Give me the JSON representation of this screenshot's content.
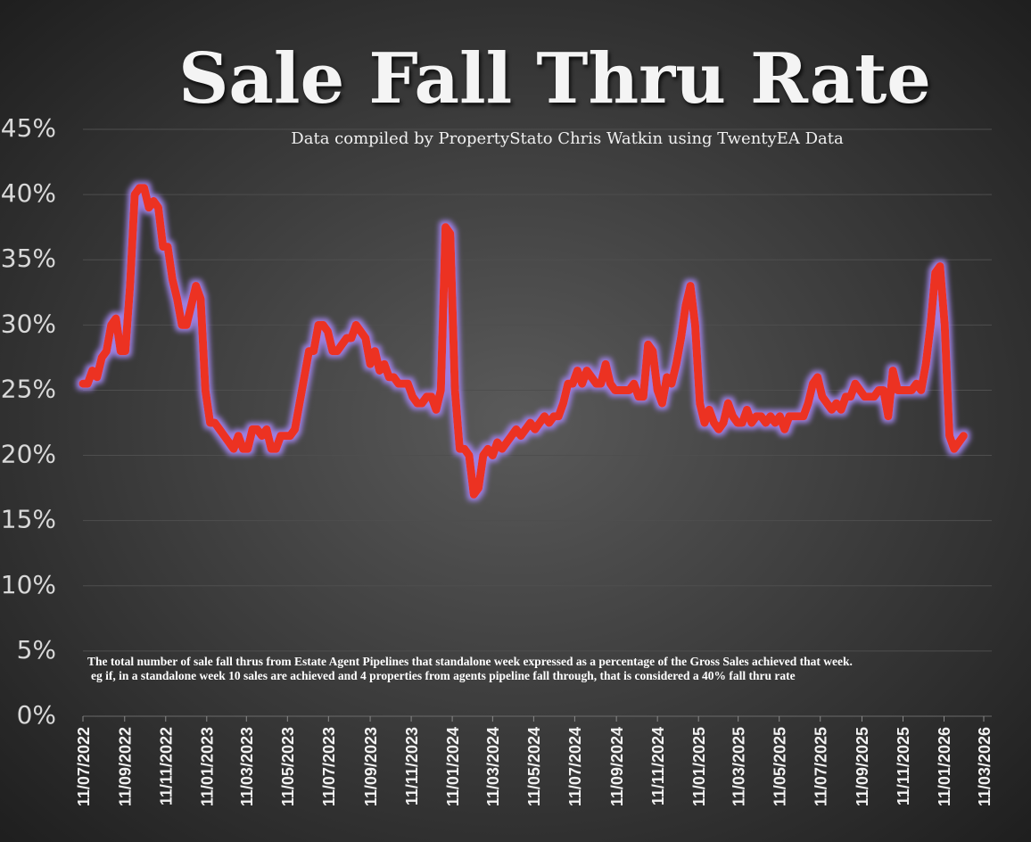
{
  "chart_data": {
    "type": "line",
    "title": "Sale Fall Thru Rate",
    "subtitle": "Data compiled by PropertyStato Chris Watkin using TwentyEA Data",
    "notes": [
      "The total number of sale fall thrus from Estate Agent Pipelines that standalone week expressed as a percentage of the Gross Sales achieved that week.",
      "eg if, in a standalone week 10 sales are achieved and 4 properties from agents pipeline fall through, that is considered a 40%  fall thru rate"
    ],
    "grid": true,
    "xlim": [
      "2022-07-11",
      "2026-03-11"
    ],
    "xticks": [
      {
        "value": "2022-07-11",
        "label": "11/07/2022"
      },
      {
        "value": "2022-09-11",
        "label": "11/09/2022"
      },
      {
        "value": "2022-11-11",
        "label": "11/11/2022"
      },
      {
        "value": "2023-01-11",
        "label": "11/01/2023"
      },
      {
        "value": "2023-03-11",
        "label": "11/03/2023"
      },
      {
        "value": "2023-05-11",
        "label": "11/05/2023"
      },
      {
        "value": "2023-07-11",
        "label": "11/07/2023"
      },
      {
        "value": "2023-09-11",
        "label": "11/09/2023"
      },
      {
        "value": "2023-11-11",
        "label": "11/11/2023"
      },
      {
        "value": "2024-01-11",
        "label": "11/01/2024"
      },
      {
        "value": "2024-03-11",
        "label": "11/03/2024"
      },
      {
        "value": "2024-05-11",
        "label": "11/05/2024"
      },
      {
        "value": "2024-07-11",
        "label": "11/07/2024"
      },
      {
        "value": "2024-09-11",
        "label": "11/09/2024"
      },
      {
        "value": "2024-11-11",
        "label": "11/11/2024"
      },
      {
        "value": "2025-01-11",
        "label": "11/01/2025"
      },
      {
        "value": "2025-03-11",
        "label": "11/03/2025"
      },
      {
        "value": "2025-05-11",
        "label": "11/05/2025"
      },
      {
        "value": "2025-07-11",
        "label": "11/07/2025"
      },
      {
        "value": "2025-09-11",
        "label": "11/09/2025"
      },
      {
        "value": "2025-11-11",
        "label": "11/11/2025"
      },
      {
        "value": "2026-01-11",
        "label": "11/01/2026"
      },
      {
        "value": "2026-03-11",
        "label": "11/03/2026"
      }
    ],
    "ylim": [
      0,
      45
    ],
    "yticks": [
      {
        "value": 0,
        "label": "0%"
      },
      {
        "value": 5,
        "label": "5%"
      },
      {
        "value": 10,
        "label": "10%"
      },
      {
        "value": 15,
        "label": "15%"
      },
      {
        "value": 20,
        "label": "20%"
      },
      {
        "value": 25,
        "label": "25%"
      },
      {
        "value": 30,
        "label": "30%"
      },
      {
        "value": 35,
        "label": "35%"
      },
      {
        "value": 40,
        "label": "40%"
      },
      {
        "value": 45,
        "label": "45%"
      }
    ],
    "x": [
      "2022-07-11",
      "2022-07-18",
      "2022-07-25",
      "2022-08-01",
      "2022-08-08",
      "2022-08-15",
      "2022-08-22",
      "2022-08-29",
      "2022-09-05",
      "2022-09-12",
      "2022-09-19",
      "2022-09-26",
      "2022-10-03",
      "2022-10-10",
      "2022-10-17",
      "2022-10-24",
      "2022-10-31",
      "2022-11-07",
      "2022-11-14",
      "2022-11-21",
      "2022-11-28",
      "2022-12-05",
      "2022-12-12",
      "2022-12-19",
      "2022-12-26",
      "2023-01-02",
      "2023-01-09",
      "2023-01-16",
      "2023-01-23",
      "2023-01-30",
      "2023-02-06",
      "2023-02-13",
      "2023-02-20",
      "2023-02-27",
      "2023-03-06",
      "2023-03-13",
      "2023-03-20",
      "2023-03-27",
      "2023-04-03",
      "2023-04-10",
      "2023-04-17",
      "2023-04-24",
      "2023-05-01",
      "2023-05-08",
      "2023-05-15",
      "2023-05-22",
      "2023-05-29",
      "2023-06-05",
      "2023-06-12",
      "2023-06-19",
      "2023-06-26",
      "2023-07-03",
      "2023-07-10",
      "2023-07-17",
      "2023-07-24",
      "2023-07-31",
      "2023-08-07",
      "2023-08-14",
      "2023-08-21",
      "2023-08-28",
      "2023-09-04",
      "2023-09-11",
      "2023-09-18",
      "2023-09-25",
      "2023-10-02",
      "2023-10-09",
      "2023-10-16",
      "2023-10-23",
      "2023-10-30",
      "2023-11-06",
      "2023-11-13",
      "2023-11-20",
      "2023-11-27",
      "2023-12-04",
      "2023-12-11",
      "2023-12-18",
      "2023-12-25",
      "2024-01-01",
      "2024-01-08",
      "2024-01-15",
      "2024-01-22",
      "2024-01-29",
      "2024-02-05",
      "2024-02-12",
      "2024-02-19",
      "2024-02-26",
      "2024-03-04",
      "2024-03-11",
      "2024-03-18",
      "2024-03-25",
      "2024-04-01",
      "2024-04-08",
      "2024-04-15",
      "2024-04-22",
      "2024-04-29",
      "2024-05-06",
      "2024-05-13",
      "2024-05-20",
      "2024-05-27",
      "2024-06-03",
      "2024-06-10",
      "2024-06-17",
      "2024-06-24",
      "2024-07-01",
      "2024-07-08",
      "2024-07-15",
      "2024-07-22",
      "2024-07-29",
      "2024-08-05",
      "2024-08-12",
      "2024-08-19",
      "2024-08-26",
      "2024-09-02",
      "2024-09-09",
      "2024-09-16",
      "2024-09-23",
      "2024-09-30",
      "2024-10-07",
      "2024-10-14",
      "2024-10-21",
      "2024-10-28",
      "2024-11-04",
      "2024-11-11",
      "2024-11-18",
      "2024-11-25",
      "2024-12-02",
      "2024-12-09",
      "2024-12-16",
      "2024-12-23",
      "2024-12-30",
      "2025-01-06",
      "2025-01-13",
      "2025-01-20",
      "2025-01-27",
      "2025-02-03",
      "2025-02-10",
      "2025-02-17",
      "2025-02-24",
      "2025-03-03",
      "2025-03-10",
      "2025-03-17",
      "2025-03-24",
      "2025-03-31",
      "2025-04-07",
      "2025-04-14",
      "2025-04-21",
      "2025-04-28",
      "2025-05-05",
      "2025-05-12",
      "2025-05-19",
      "2025-05-26",
      "2025-06-02",
      "2025-06-09",
      "2025-06-16",
      "2025-06-23",
      "2025-06-30",
      "2025-07-07",
      "2025-07-14",
      "2025-07-21",
      "2025-07-28",
      "2025-08-04",
      "2025-08-11",
      "2025-08-18",
      "2025-08-25",
      "2025-09-01",
      "2025-09-08",
      "2025-09-15",
      "2025-09-22",
      "2025-09-29",
      "2025-10-06",
      "2025-10-13",
      "2025-10-20",
      "2025-10-27",
      "2025-11-03",
      "2025-11-10",
      "2025-11-17",
      "2025-11-24",
      "2025-12-01",
      "2025-12-08",
      "2025-12-15",
      "2025-12-22",
      "2025-12-29",
      "2026-01-05",
      "2026-01-12",
      "2026-01-19",
      "2026-01-26",
      "2026-02-02",
      "2026-02-09"
    ],
    "series": [
      {
        "color": "#ec3024",
        "glow": "#9b7fe0",
        "values": [
          25.5,
          25.5,
          26.5,
          26,
          27.5,
          28,
          30,
          30.5,
          28,
          28,
          33,
          40,
          40.5,
          40.5,
          39,
          39.5,
          39,
          36,
          36,
          33.5,
          32,
          30,
          30,
          31.5,
          33,
          32,
          25,
          22.5,
          22.5,
          22,
          21.5,
          21,
          20.5,
          21.5,
          20.5,
          20.5,
          22,
          22,
          21.5,
          22,
          20.5,
          20.5,
          21.5,
          21.5,
          21.5,
          22,
          24,
          26,
          28,
          28,
          30,
          30,
          29.5,
          28,
          28,
          28.5,
          29,
          29,
          30,
          29.5,
          29,
          27,
          28,
          26.5,
          27,
          26,
          26,
          25.5,
          25.5,
          25.5,
          24.5,
          24,
          24,
          24.5,
          24.5,
          23.5,
          25,
          37.5,
          37,
          25,
          20.5,
          20.5,
          20,
          17,
          17.5,
          20,
          20.5,
          20,
          21,
          20.5,
          21,
          21.5,
          22,
          21.5,
          22,
          22.5,
          22,
          22.5,
          23,
          22.5,
          23,
          23,
          24,
          25.5,
          25.5,
          26.5,
          25.5,
          26.5,
          26,
          25.5,
          25.5,
          27,
          25.5,
          25,
          25,
          25,
          25,
          25.5,
          24.5,
          24.5,
          28.5,
          28,
          25,
          24,
          26,
          25.5,
          27,
          29,
          31.5,
          33,
          30,
          24,
          22.5,
          23.5,
          22.5,
          22,
          22.5,
          24,
          23,
          22.5,
          22.5,
          23.5,
          22.5,
          23,
          23,
          22.5,
          23,
          22.5,
          23,
          22,
          23,
          23,
          23,
          23,
          24,
          25.5,
          26,
          24.5,
          24,
          23.5,
          24,
          23.5,
          24.5,
          24.5,
          25.5,
          25,
          24.5,
          24.5,
          24.5,
          25,
          25,
          23,
          26.5,
          25,
          25,
          25,
          25,
          25.5,
          25,
          27,
          30,
          34,
          34.5,
          30,
          21.5,
          20.5,
          21,
          21.5
        ]
      }
    ]
  }
}
